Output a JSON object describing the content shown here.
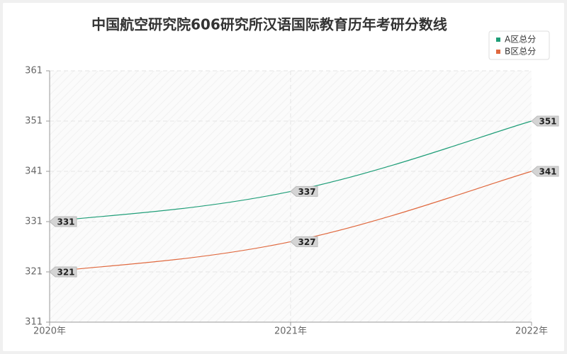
{
  "chart_data": {
    "type": "line",
    "title": "中国航空研究院606研究所汉语国际教育历年考研分数线",
    "categories": [
      "2020年",
      "2021年",
      "2022年"
    ],
    "series": [
      {
        "name": "A区总分",
        "color": "#1f9e78",
        "values": [
          331,
          337,
          351
        ]
      },
      {
        "name": "B区总分",
        "color": "#e0693f",
        "values": [
          321,
          327,
          341
        ]
      }
    ],
    "ylim": [
      311,
      361
    ],
    "yticks": [
      311,
      321,
      331,
      341,
      351,
      361
    ],
    "grid": true,
    "legend": "top-right"
  }
}
